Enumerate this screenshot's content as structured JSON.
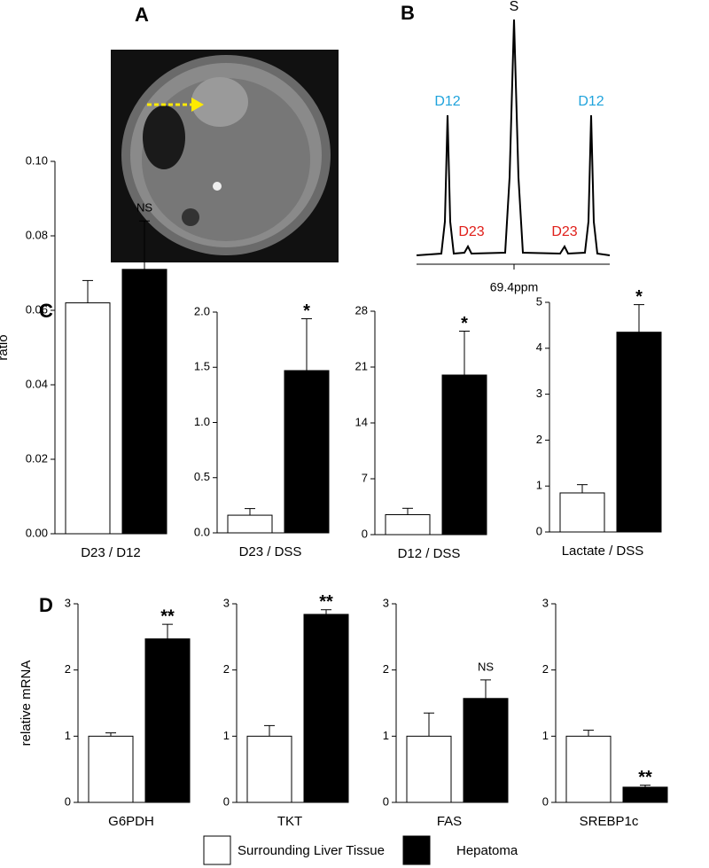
{
  "panels": [
    "A",
    "B",
    "C",
    "D"
  ],
  "spectrum": {
    "peaks": [
      {
        "label": "D12",
        "color": "#1fa3dc"
      },
      {
        "label": "D23",
        "color": "#e0201b"
      },
      {
        "label": "S",
        "color": "#000000"
      },
      {
        "label": "D23",
        "color": "#e0201b"
      },
      {
        "label": "D12",
        "color": "#1fa3dc"
      }
    ],
    "axis_label": "69.4ppm"
  },
  "legend": [
    {
      "name": "Surrounding Liver Tissue",
      "color": "#ffffff"
    },
    {
      "name": "Hepatoma",
      "color": "#000000"
    }
  ],
  "chart_data": [
    {
      "type": "bar",
      "ylabel": "ratio",
      "xlabel": "D23 / D12",
      "values": [
        0.062,
        0.071
      ],
      "errors": [
        0.006,
        0.013
      ],
      "annotation": "NS",
      "ylim": [
        0,
        0.1
      ],
      "yticks": [
        {
          "value": 0,
          "label": "0.00"
        },
        {
          "value": 0.02,
          "label": "0.02"
        },
        {
          "value": 0.04,
          "label": "0.04"
        },
        {
          "value": 0.06,
          "label": "0.06"
        },
        {
          "value": 0.08,
          "label": "0.08"
        },
        {
          "value": 0.1,
          "label": "0.10"
        }
      ]
    },
    {
      "type": "bar",
      "xlabel": "D23 / DSS",
      "values": [
        0.16,
        1.47
      ],
      "errors": [
        0.06,
        0.47
      ],
      "annotation": "*",
      "ylim": [
        0,
        2
      ],
      "yticks": [
        {
          "value": 0,
          "label": "0.0"
        },
        0.5,
        {
          "value": 1,
          "label": "1.0"
        },
        1.5,
        {
          "value": 2,
          "label": "2.0"
        }
      ]
    },
    {
      "type": "bar",
      "xlabel": "D12 / DSS",
      "values": [
        2.5,
        20
      ],
      "errors": [
        0.8,
        5.5
      ],
      "annotation": "*",
      "ylim": [
        0,
        28
      ],
      "yticks": [
        0,
        7,
        14,
        21,
        28
      ]
    },
    {
      "type": "bar",
      "xlabel": "Lactate / DSS",
      "values": [
        0.85,
        4.35
      ],
      "errors": [
        0.18,
        0.6
      ],
      "annotation": "*",
      "ylim": [
        0,
        5
      ],
      "yticks": [
        0,
        1,
        2,
        3,
        4,
        5
      ]
    },
    {
      "type": "bar",
      "ylabel": "relative mRNA",
      "xlabel": "G6PDH",
      "values": [
        1,
        2.47
      ],
      "errors": [
        0.05,
        0.22
      ],
      "annotation": "**",
      "ylim": [
        0,
        3
      ],
      "yticks": [
        0,
        1,
        2,
        3
      ]
    },
    {
      "type": "bar",
      "xlabel": "TKT",
      "values": [
        1,
        2.84
      ],
      "errors": [
        0.16,
        0.07
      ],
      "annotation": "**",
      "ylim": [
        0,
        3
      ],
      "yticks": [
        0,
        1,
        2,
        3
      ]
    },
    {
      "type": "bar",
      "xlabel": "FAS",
      "values": [
        1,
        1.57
      ],
      "errors": [
        0.35,
        0.28
      ],
      "annotation": "NS",
      "ylim": [
        0,
        3
      ],
      "yticks": [
        0,
        1,
        2,
        3
      ]
    },
    {
      "type": "bar",
      "xlabel": "SREBP1c",
      "values": [
        1,
        0.23
      ],
      "errors": [
        0.09,
        0.03
      ],
      "annotation": "**",
      "ylim": [
        0,
        3
      ],
      "yticks": [
        0,
        1,
        2,
        3
      ]
    }
  ]
}
